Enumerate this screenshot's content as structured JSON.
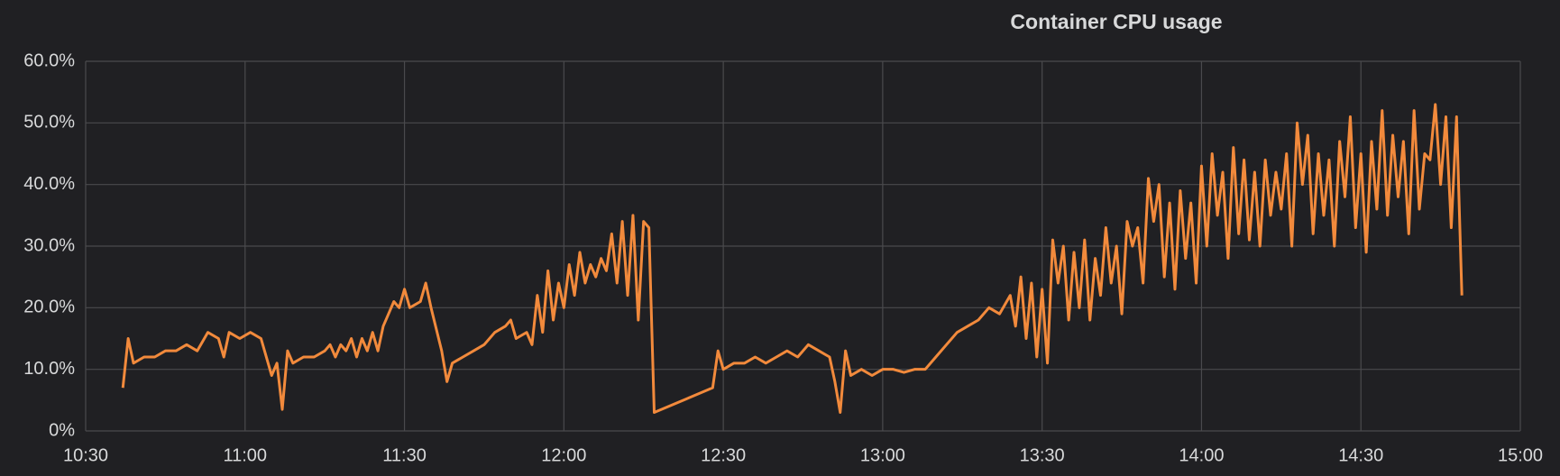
{
  "chart_data": {
    "type": "line",
    "title": "Container CPU usage",
    "color": "#f28a3c",
    "grid": true,
    "xlim": [
      "10:30",
      "15:00"
    ],
    "xticks": [
      "10:30",
      "11:00",
      "11:30",
      "12:00",
      "12:30",
      "13:00",
      "13:30",
      "14:00",
      "14:30",
      "15:00"
    ],
    "ylim": [
      0,
      60
    ],
    "yticks": [
      {
        "value": 0,
        "label": "0%"
      },
      {
        "value": 10,
        "label": "10.0%"
      },
      {
        "value": 20,
        "label": "20.0%"
      },
      {
        "value": 30,
        "label": "30.0%"
      },
      {
        "value": 40,
        "label": "40.0%"
      },
      {
        "value": 50,
        "label": "50.0%"
      },
      {
        "value": 60,
        "label": "60.0%"
      }
    ],
    "x": [
      "10:37",
      "10:38",
      "10:39",
      "10:41",
      "10:43",
      "10:45",
      "10:47",
      "10:49",
      "10:51",
      "10:53",
      "10:55",
      "10:56",
      "10:57",
      "10:59",
      "11:01",
      "11:03",
      "11:05",
      "11:06",
      "11:07",
      "11:08",
      "11:09",
      "11:11",
      "11:13",
      "11:15",
      "11:16",
      "11:17",
      "11:18",
      "11:19",
      "11:20",
      "11:21",
      "11:22",
      "11:23",
      "11:24",
      "11:25",
      "11:26",
      "11:27",
      "11:28",
      "11:29",
      "11:30",
      "11:31",
      "11:33",
      "11:34",
      "11:35",
      "11:37",
      "11:38",
      "11:39",
      "11:41",
      "11:43",
      "11:45",
      "11:47",
      "11:49",
      "11:50",
      "11:51",
      "11:53",
      "11:54",
      "11:55",
      "11:56",
      "11:57",
      "11:58",
      "11:59",
      "12:00",
      "12:01",
      "12:02",
      "12:03",
      "12:04",
      "12:05",
      "12:06",
      "12:07",
      "12:08",
      "12:09",
      "12:10",
      "12:11",
      "12:12",
      "12:13",
      "12:14",
      "12:15",
      "12:16",
      "12:17",
      "12:28",
      "12:29",
      "12:30",
      "12:32",
      "12:34",
      "12:36",
      "12:38",
      "12:40",
      "12:42",
      "12:44",
      "12:46",
      "12:48",
      "12:50",
      "12:51",
      "12:52",
      "12:53",
      "12:54",
      "12:56",
      "12:58",
      "13:00",
      "13:02",
      "13:04",
      "13:06",
      "13:08",
      "13:10",
      "13:12",
      "13:14",
      "13:16",
      "13:18",
      "13:20",
      "13:22",
      "13:24",
      "13:25",
      "13:26",
      "13:27",
      "13:28",
      "13:29",
      "13:30",
      "13:31",
      "13:32",
      "13:33",
      "13:34",
      "13:35",
      "13:36",
      "13:37",
      "13:38",
      "13:39",
      "13:40",
      "13:41",
      "13:42",
      "13:43",
      "13:44",
      "13:45",
      "13:46",
      "13:47",
      "13:48",
      "13:49",
      "13:50",
      "13:51",
      "13:52",
      "13:53",
      "13:54",
      "13:55",
      "13:56",
      "13:57",
      "13:58",
      "13:59",
      "14:00",
      "14:01",
      "14:02",
      "14:03",
      "14:04",
      "14:05",
      "14:06",
      "14:07",
      "14:08",
      "14:09",
      "14:10",
      "14:11",
      "14:12",
      "14:13",
      "14:14",
      "14:15",
      "14:16",
      "14:17",
      "14:18",
      "14:19",
      "14:20",
      "14:21",
      "14:22",
      "14:23",
      "14:24",
      "14:25",
      "14:26",
      "14:27",
      "14:28",
      "14:29",
      "14:30",
      "14:31",
      "14:32",
      "14:33",
      "14:34",
      "14:35",
      "14:36",
      "14:37",
      "14:38",
      "14:39",
      "14:40",
      "14:41",
      "14:42",
      "14:43",
      "14:44",
      "14:45",
      "14:46",
      "14:47",
      "14:48",
      "14:49"
    ],
    "values": [
      7,
      15,
      11,
      12,
      12,
      13,
      13,
      14,
      13,
      16,
      15,
      12,
      16,
      15,
      16,
      15,
      9,
      11,
      3.5,
      13,
      11,
      12,
      12,
      13,
      14,
      12,
      14,
      13,
      15,
      12,
      15,
      13,
      16,
      13,
      17,
      19,
      21,
      20,
      23,
      20,
      21,
      24,
      20,
      13,
      8,
      11,
      12,
      13,
      14,
      16,
      17,
      18,
      15,
      16,
      14,
      22,
      16,
      26,
      18,
      24,
      20,
      27,
      22,
      29,
      24,
      27,
      25,
      28,
      26,
      32,
      24,
      34,
      22,
      35,
      18,
      34,
      33,
      3,
      7,
      13,
      10,
      11,
      11,
      12,
      11,
      12,
      13,
      12,
      14,
      13,
      12,
      8,
      3,
      13,
      9,
      10,
      9,
      10,
      10,
      9.5,
      10,
      10,
      12,
      14,
      16,
      17,
      18,
      20,
      19,
      22,
      17,
      25,
      15,
      24,
      12,
      23,
      11,
      31,
      24,
      30,
      18,
      29,
      20,
      31,
      18,
      28,
      22,
      33,
      24,
      30,
      19,
      34,
      30,
      33,
      24,
      41,
      34,
      40,
      25,
      37,
      23,
      39,
      28,
      37,
      24,
      43,
      30,
      45,
      35,
      42,
      28,
      46,
      32,
      44,
      31,
      42,
      30,
      44,
      35,
      42,
      36,
      45,
      30,
      50,
      40,
      48,
      32,
      45,
      35,
      44,
      30,
      47,
      38,
      51,
      33,
      45,
      29,
      47,
      36,
      52,
      35,
      48,
      38,
      47,
      32,
      52,
      36,
      45,
      44,
      53,
      40,
      51,
      33,
      51,
      22
    ]
  }
}
